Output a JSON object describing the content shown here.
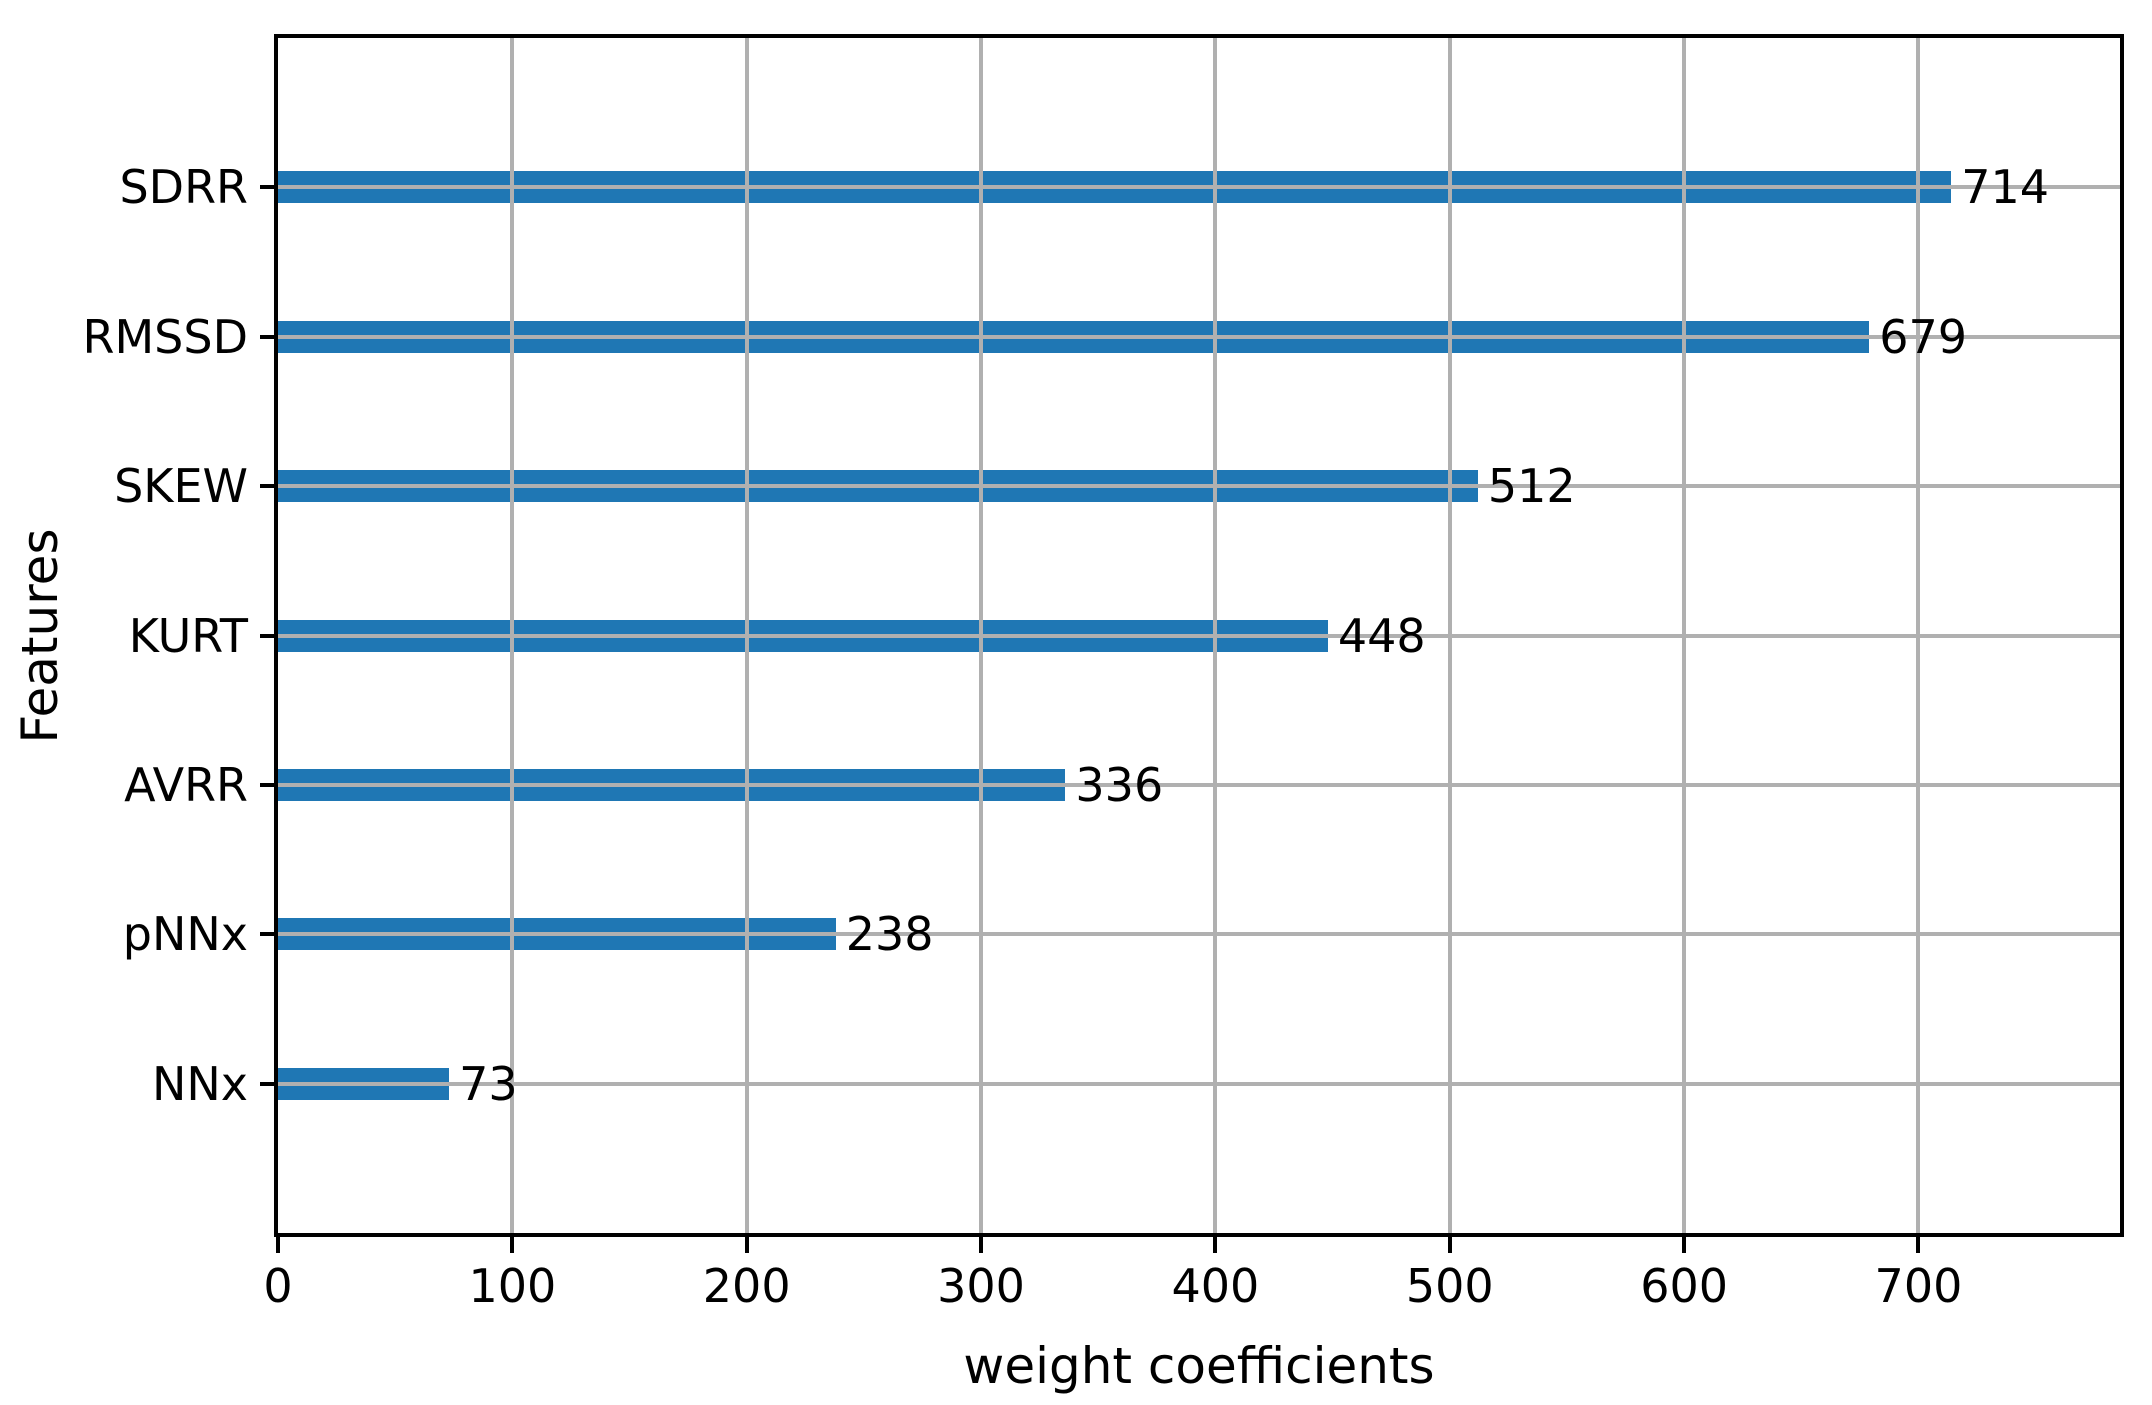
{
  "chart_data": {
    "type": "bar",
    "orientation": "horizontal",
    "title": "",
    "xlabel": "weight coefficients",
    "ylabel": "Features",
    "categories": [
      "SDRR",
      "RMSSD",
      "SKEW",
      "KURT",
      "AVRR",
      "pNNx",
      "NNx"
    ],
    "values": [
      714,
      679,
      512,
      448,
      336,
      238,
      73
    ],
    "value_labels": [
      "714",
      "679",
      "512",
      "448",
      "336",
      "238",
      "73"
    ],
    "x_ticks": [
      0,
      100,
      200,
      300,
      400,
      500,
      600,
      700
    ],
    "xlim": [
      0,
      786
    ],
    "grid": "on, drawn above bars",
    "legend": "none",
    "colors": {
      "bar": "#1f77b4",
      "grid": "#b0b0b0",
      "spine": "#000000",
      "text": "#000000",
      "background": "#ffffff"
    }
  }
}
